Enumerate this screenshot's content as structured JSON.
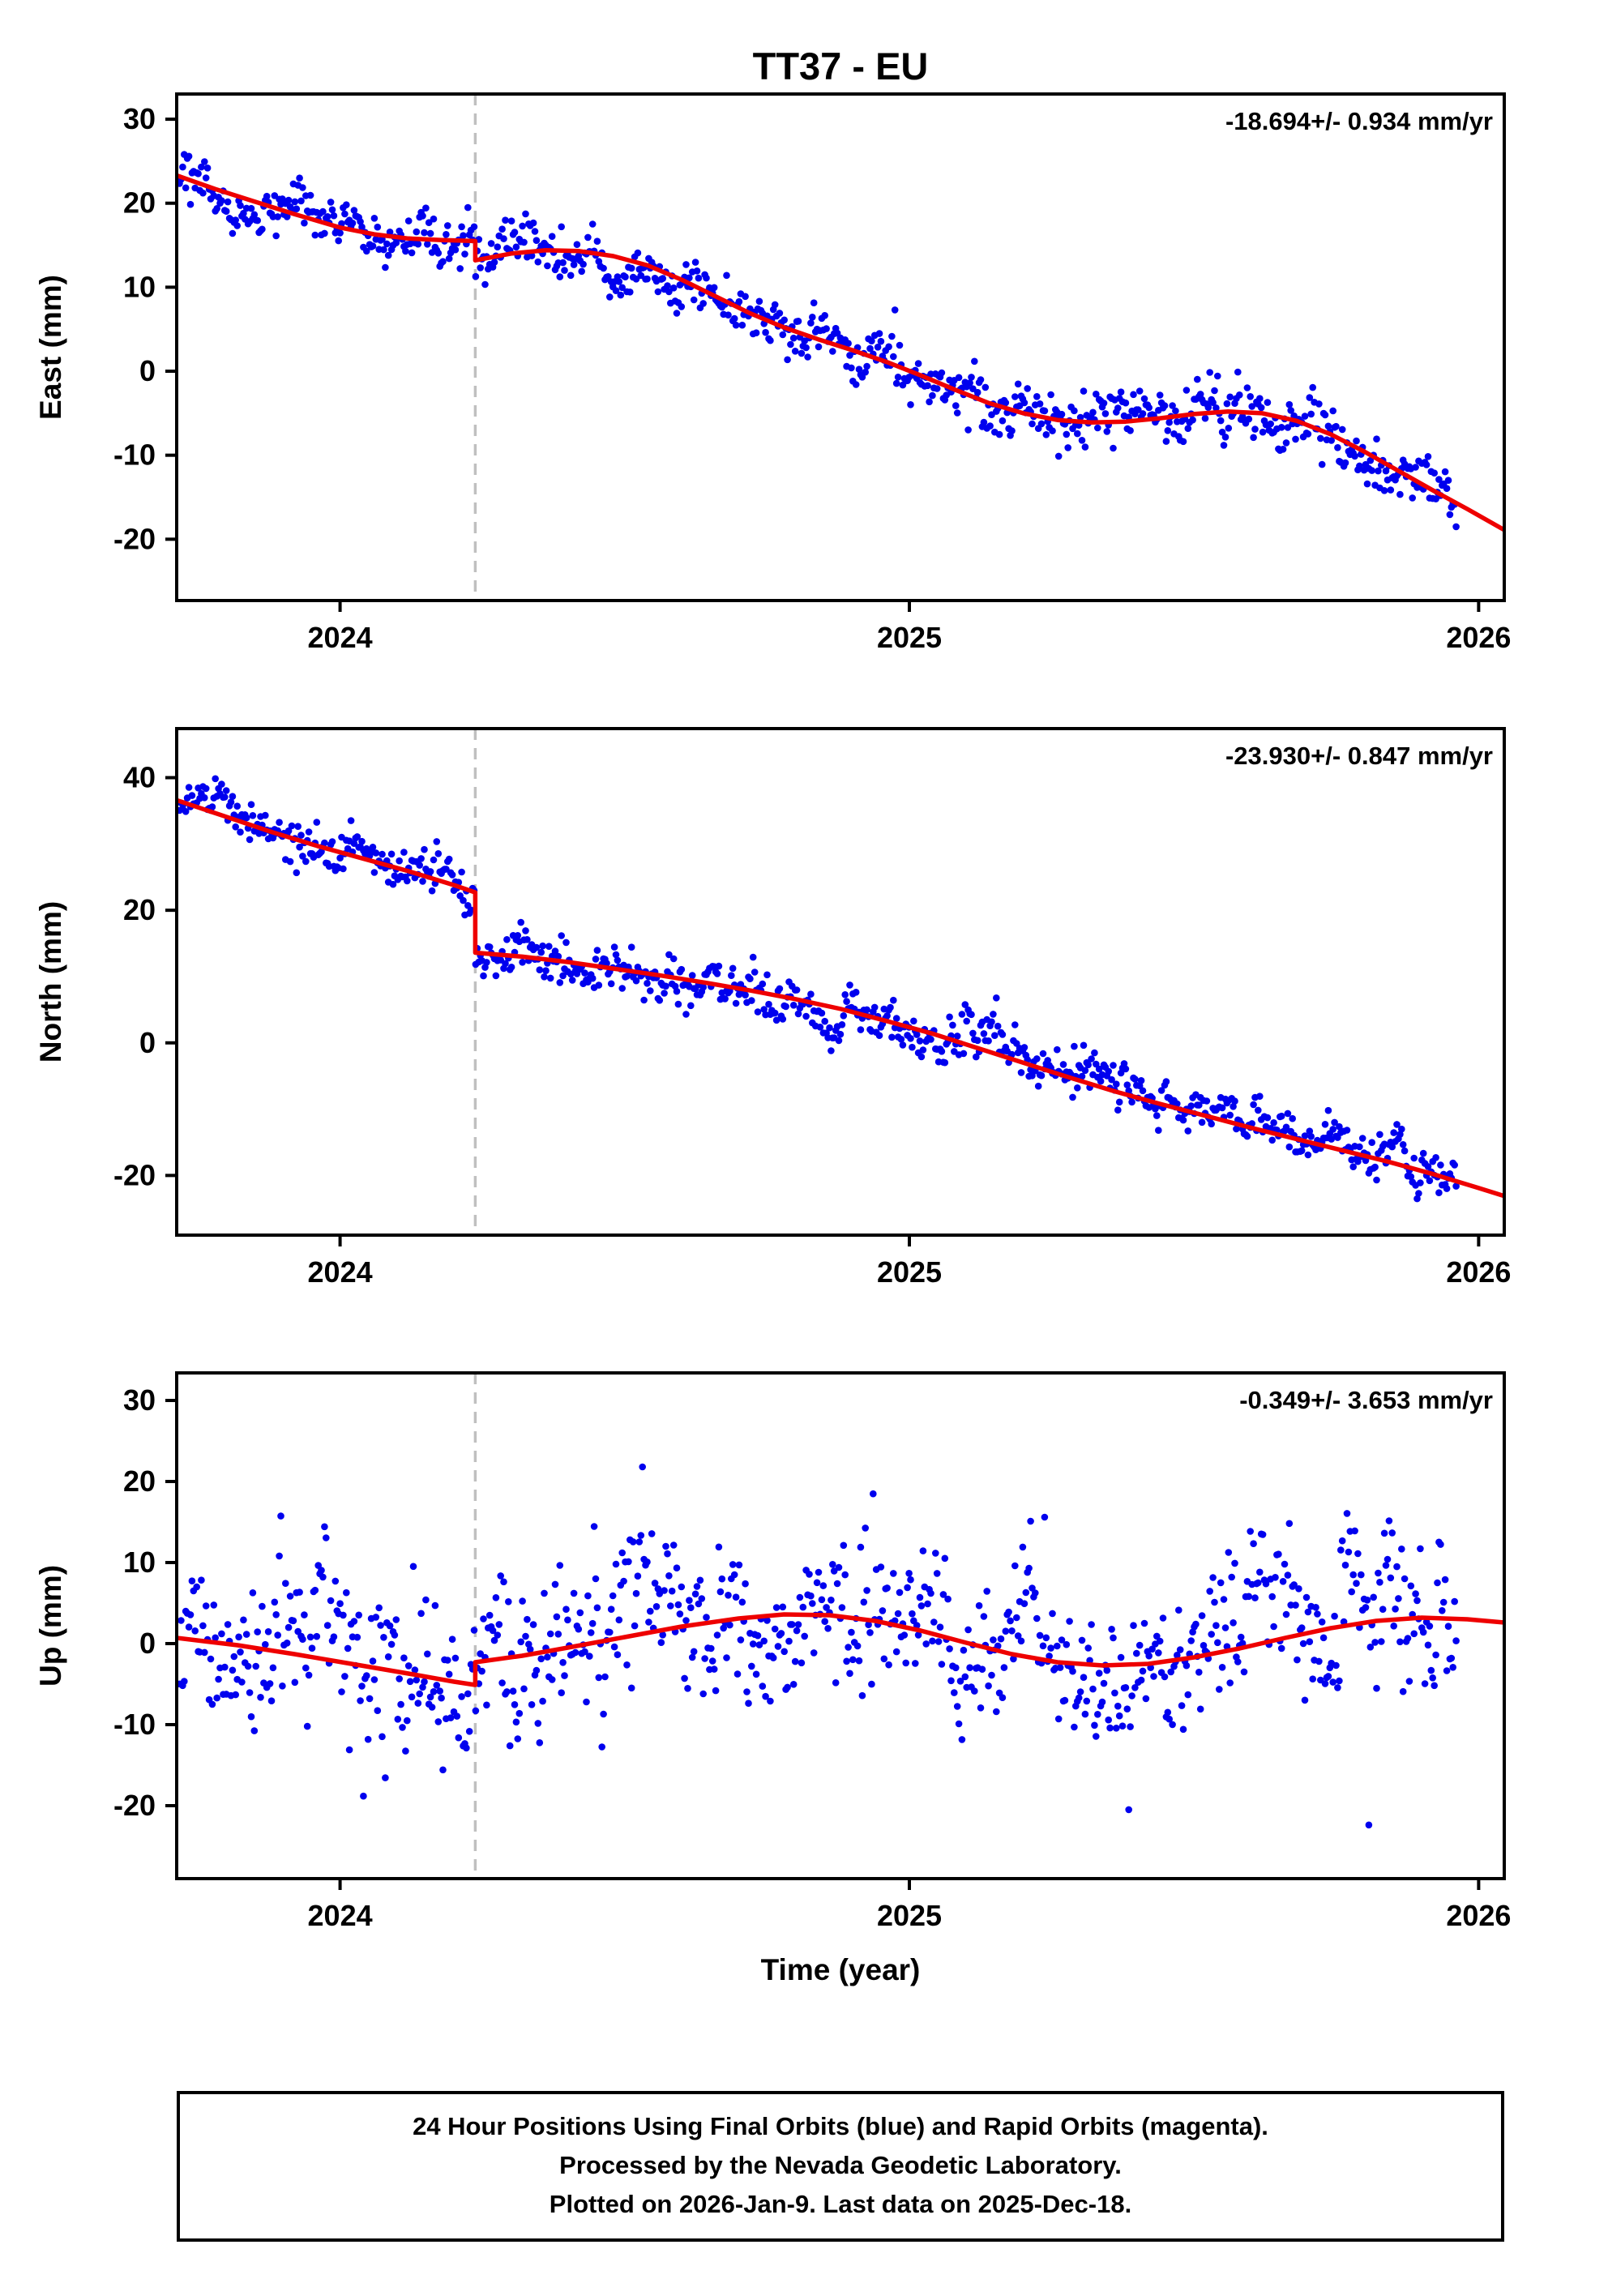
{
  "caption": {
    "line1": "24 Hour Positions Using Final Orbits (blue) and Rapid Orbits (magenta).",
    "line2": "Processed by the Nevada Geodetic Laboratory.",
    "line3": "Plotted on 2026-Jan-9. Last data on 2025-Dec-18."
  },
  "colors": {
    "points": "#0000EE",
    "trend": "#EE0000",
    "event": "#C0C0C0",
    "frame": "#000000",
    "background": "#FFFFFF"
  },
  "chart_data": {
    "type": "scatter",
    "title": "TT37 - EU",
    "xlabel": "Time (year)",
    "x_axis": {
      "lim": [
        2023.713,
        2026.045
      ],
      "ticks": [
        2024,
        2025,
        2026
      ]
    },
    "event_line_x": 2024.2375,
    "panels": [
      {
        "name": "east",
        "ylabel": "East (mm)",
        "rate_label": "-18.694+/- 0.934 mm/yr",
        "ylim": [
          -27.3,
          33.0
        ],
        "yticks": [
          30,
          20,
          10,
          0,
          -10,
          -20
        ],
        "trend": {
          "segments": [
            [
              [
                2023.713,
                23.3
              ],
              [
                2023.78,
                21.7
              ],
              [
                2023.85,
                20.2
              ],
              [
                2023.92,
                18.7
              ],
              [
                2024.0,
                17.1
              ],
              [
                2024.06,
                16.3
              ],
              [
                2024.12,
                15.8
              ],
              [
                2024.18,
                15.6
              ],
              [
                2024.2375,
                15.5
              ]
            ],
            [
              [
                2024.2375,
                13.2
              ],
              [
                2024.3,
                14.0
              ],
              [
                2024.36,
                14.4
              ],
              [
                2024.42,
                14.3
              ],
              [
                2024.48,
                13.7
              ],
              [
                2024.54,
                12.6
              ],
              [
                2024.6,
                10.9
              ],
              [
                2024.66,
                8.9
              ],
              [
                2024.72,
                6.9
              ],
              [
                2024.78,
                5.2
              ],
              [
                2024.84,
                3.8
              ],
              [
                2024.9,
                2.5
              ],
              [
                2024.96,
                1.1
              ],
              [
                2025.02,
                -0.5
              ],
              [
                2025.08,
                -2.2
              ],
              [
                2025.14,
                -3.8
              ],
              [
                2025.2,
                -5.0
              ],
              [
                2025.26,
                -5.8
              ],
              [
                2025.32,
                -6.1
              ],
              [
                2025.38,
                -6.0
              ],
              [
                2025.44,
                -5.6
              ],
              [
                2025.5,
                -5.1
              ],
              [
                2025.56,
                -4.8
              ],
              [
                2025.62,
                -5.0
              ],
              [
                2025.68,
                -5.9
              ],
              [
                2025.74,
                -7.5
              ],
              [
                2025.8,
                -9.6
              ],
              [
                2025.86,
                -11.9
              ],
              [
                2025.92,
                -14.2
              ],
              [
                2025.98,
                -16.4
              ],
              [
                2026.045,
                -18.9
              ]
            ]
          ]
        },
        "scatter": {
          "start": 2023.718,
          "end": 2025.962,
          "step": 0.002738,
          "sigma": 1.9,
          "seed": 101,
          "outlier_prob": 0.008,
          "outlier_scale": 2.0
        }
      },
      {
        "name": "north",
        "ylabel": "North (mm)",
        "rate_label": "-23.930+/- 0.847 mm/yr",
        "ylim": [
          -29.0,
          47.4
        ],
        "yticks": [
          40,
          20,
          0,
          -20
        ],
        "trend": {
          "segments": [
            [
              [
                2023.713,
                36.6
              ],
              [
                2023.8,
                34.1
              ],
              [
                2023.88,
                31.8
              ],
              [
                2023.96,
                29.7
              ],
              [
                2024.04,
                27.8
              ],
              [
                2024.12,
                25.9
              ],
              [
                2024.2,
                23.8
              ],
              [
                2024.2375,
                22.7
              ]
            ],
            [
              [
                2024.2375,
                13.6
              ],
              [
                2024.32,
                13.0
              ],
              [
                2024.4,
                12.2
              ],
              [
                2024.48,
                11.2
              ],
              [
                2024.56,
                10.2
              ],
              [
                2024.64,
                9.1
              ],
              [
                2024.72,
                7.9
              ],
              [
                2024.8,
                6.6
              ],
              [
                2024.88,
                5.1
              ],
              [
                2024.96,
                3.3
              ],
              [
                2025.04,
                1.4
              ],
              [
                2025.12,
                -0.8
              ],
              [
                2025.2,
                -3.0
              ],
              [
                2025.28,
                -5.2
              ],
              [
                2025.36,
                -7.3
              ],
              [
                2025.44,
                -9.2
              ],
              [
                2025.52,
                -11.0
              ],
              [
                2025.6,
                -12.8
              ],
              [
                2025.68,
                -14.5
              ],
              [
                2025.76,
                -16.2
              ],
              [
                2025.84,
                -17.9
              ],
              [
                2025.92,
                -19.8
              ],
              [
                2026.0,
                -21.9
              ],
              [
                2026.045,
                -23.1
              ]
            ]
          ]
        },
        "scatter": {
          "start": 2023.718,
          "end": 2025.962,
          "step": 0.002738,
          "sigma": 2.1,
          "seed": 202,
          "outlier_prob": 0.008,
          "outlier_scale": 2.0
        }
      },
      {
        "name": "up",
        "ylabel": "Up (mm)",
        "rate_label": "-0.349+/- 3.653 mm/yr",
        "ylim": [
          -29.0,
          33.4
        ],
        "yticks": [
          30,
          20,
          10,
          0,
          -10,
          -20
        ],
        "trend": {
          "segments": [
            [
              [
                2023.713,
                0.7
              ],
              [
                2023.82,
                -0.2
              ],
              [
                2023.92,
                -1.3
              ],
              [
                2024.02,
                -2.5
              ],
              [
                2024.12,
                -3.7
              ],
              [
                2024.2,
                -4.7
              ],
              [
                2024.2375,
                -5.1
              ]
            ],
            [
              [
                2024.2375,
                -2.3
              ],
              [
                2024.32,
                -1.5
              ],
              [
                2024.4,
                -0.5
              ],
              [
                2024.5,
                0.8
              ],
              [
                2024.6,
                2.1
              ],
              [
                2024.7,
                3.1
              ],
              [
                2024.78,
                3.6
              ],
              [
                2024.86,
                3.5
              ],
              [
                2024.94,
                2.8
              ],
              [
                2025.02,
                1.6
              ],
              [
                2025.1,
                0.1
              ],
              [
                2025.18,
                -1.3
              ],
              [
                2025.26,
                -2.3
              ],
              [
                2025.34,
                -2.7
              ],
              [
                2025.42,
                -2.5
              ],
              [
                2025.5,
                -1.7
              ],
              [
                2025.58,
                -0.6
              ],
              [
                2025.66,
                0.7
              ],
              [
                2025.74,
                1.9
              ],
              [
                2025.82,
                2.8
              ],
              [
                2025.9,
                3.2
              ],
              [
                2025.98,
                3.0
              ],
              [
                2026.045,
                2.6
              ]
            ]
          ]
        },
        "scatter": {
          "start": 2023.718,
          "end": 2025.962,
          "step": 0.002738,
          "sigma": 5.6,
          "seed": 303,
          "outlier_prob": 0.02,
          "outlier_scale": 2.3
        }
      }
    ]
  }
}
